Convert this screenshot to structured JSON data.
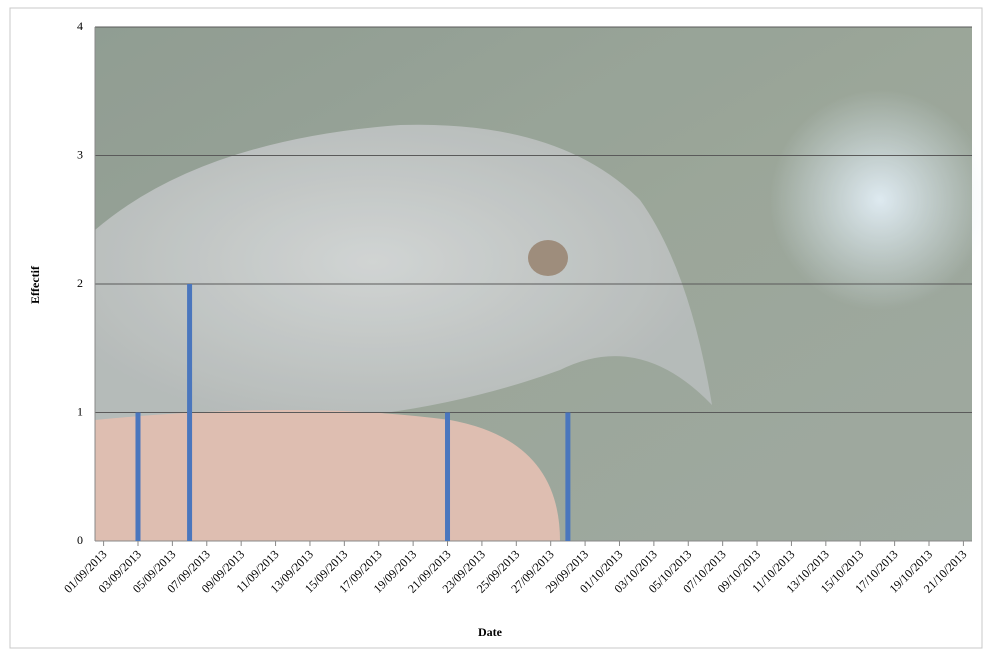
{
  "chart_data": {
    "type": "bar",
    "x_label": "Date",
    "y_label": "Effectif",
    "categories": [
      "01/09/2013",
      null,
      "03/09/2013",
      null,
      "05/09/2013",
      null,
      "07/09/2013",
      null,
      "09/09/2013",
      null,
      "11/09/2013",
      null,
      "13/09/2013",
      null,
      "15/09/2013",
      null,
      "17/09/2013",
      null,
      "19/09/2013",
      null,
      "21/09/2013",
      null,
      "23/09/2013",
      null,
      "25/09/2013",
      null,
      "27/09/2013",
      null,
      "29/09/2013",
      null,
      "01/10/2013",
      null,
      "03/10/2013",
      null,
      "05/10/2013",
      null,
      "07/10/2013",
      null,
      "09/10/2013",
      null,
      "11/10/2013",
      null,
      "13/10/2013",
      null,
      "15/10/2013",
      null,
      "17/10/2013",
      null,
      "19/10/2013",
      null,
      "21/10/2013"
    ],
    "values": [
      0,
      0,
      1,
      0,
      0,
      2,
      0,
      0,
      0,
      0,
      0,
      0,
      0,
      0,
      0,
      0,
      0,
      0,
      0,
      0,
      1,
      0,
      0,
      0,
      0,
      0,
      0,
      1,
      0,
      0,
      0,
      0,
      0,
      0,
      0,
      0,
      0,
      0,
      0,
      0,
      0,
      0,
      0,
      0,
      0,
      0,
      0,
      0,
      0,
      0,
      0
    ],
    "color": "#4a76bd",
    "ylim": [
      0,
      4
    ],
    "yticks": [
      0,
      1,
      2,
      3,
      4
    ],
    "grid": true
  }
}
